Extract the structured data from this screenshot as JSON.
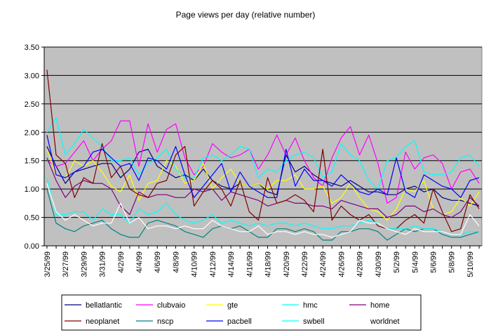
{
  "chart_data": {
    "type": "line",
    "title": "Page views per day (relative number)",
    "xlabel": "",
    "ylabel": "",
    "ylim": [
      0,
      3.5
    ],
    "yticks": [
      "0.00",
      "0.50",
      "1.00",
      "1.50",
      "2.00",
      "2.50",
      "3.00",
      "3.50"
    ],
    "ytick_values": [
      0,
      0.5,
      1,
      1.5,
      2,
      2.5,
      3,
      3.5
    ],
    "grid": true,
    "plot_background": "#c0c0c0",
    "legend_position": "bottom",
    "x_tick_labels": [
      "3/25/99",
      "3/27/99",
      "3/29/99",
      "3/31/99",
      "4/2/99",
      "4/4/99",
      "4/6/99",
      "4/8/99",
      "4/10/99",
      "4/12/99",
      "4/14/99",
      "4/16/99",
      "4/18/99",
      "4/20/99",
      "4/22/99",
      "4/24/99",
      "4/26/99",
      "4/28/99",
      "4/30/99",
      "5/2/99",
      "5/4/99",
      "5/6/99",
      "5/8/99",
      "5/10/99"
    ],
    "x": [
      "3/25/99",
      "3/26/99",
      "3/27/99",
      "3/28/99",
      "3/29/99",
      "3/30/99",
      "3/31/99",
      "4/1/99",
      "4/2/99",
      "4/3/99",
      "4/4/99",
      "4/5/99",
      "4/6/99",
      "4/7/99",
      "4/8/99",
      "4/9/99",
      "4/10/99",
      "4/11/99",
      "4/12/99",
      "4/13/99",
      "4/14/99",
      "4/15/99",
      "4/16/99",
      "4/17/99",
      "4/18/99",
      "4/19/99",
      "4/20/99",
      "4/21/99",
      "4/22/99",
      "4/23/99",
      "4/24/99",
      "4/25/99",
      "4/26/99",
      "4/27/99",
      "4/28/99",
      "4/29/99",
      "4/30/99",
      "5/1/99",
      "5/2/99",
      "5/3/99",
      "5/4/99",
      "5/5/99",
      "5/6/99",
      "5/7/99",
      "5/8/99",
      "5/9/99",
      "5/10/99",
      "5/11/99"
    ],
    "series": [
      {
        "name": "bellatlantic",
        "color": "#000080",
        "values": [
          1.75,
          1.4,
          1.1,
          1.3,
          1.35,
          1.4,
          1.45,
          1.45,
          1.2,
          1.35,
          1.65,
          1.7,
          1.4,
          1.3,
          1.2,
          1.25,
          1.15,
          1.35,
          1.15,
          1.05,
          1.0,
          1.1,
          1.05,
          1.1,
          0.95,
          0.9,
          1.6,
          1.3,
          1.4,
          1.25,
          1.15,
          1.1,
          1.05,
          1.15,
          1.05,
          0.95,
          0.95,
          0.9,
          0.9,
          1.0,
          1.05,
          0.95,
          1.0,
          0.85,
          0.8,
          0.8,
          0.75,
          0.7
        ]
      },
      {
        "name": "clubvaio",
        "color": "#ff00ff",
        "values": [
          1.5,
          1.4,
          1.45,
          1.65,
          1.85,
          1.5,
          1.7,
          1.85,
          2.2,
          2.2,
          1.4,
          2.15,
          1.65,
          2.05,
          2.15,
          1.55,
          1.25,
          1.4,
          1.8,
          1.65,
          1.55,
          1.6,
          1.7,
          1.35,
          1.6,
          1.95,
          1.6,
          1.9,
          1.5,
          1.2,
          1.05,
          1.55,
          1.9,
          2.1,
          1.6,
          1.95,
          1.45,
          0.75,
          0.85,
          1.65,
          1.35,
          1.55,
          1.6,
          1.45,
          1.0,
          1.3,
          1.35,
          1.1
        ]
      },
      {
        "name": "gte",
        "color": "#ffff00",
        "values": [
          1.7,
          1.25,
          1.2,
          1.5,
          1.4,
          1.5,
          1.3,
          1.05,
          0.95,
          1.25,
          0.8,
          1.1,
          1.15,
          1.5,
          1.4,
          1.1,
          1.15,
          1.45,
          1.0,
          1.2,
          1.35,
          1.1,
          1.05,
          1.1,
          1.0,
          1.15,
          1.15,
          1.25,
          1.0,
          1.0,
          1.05,
          0.75,
          0.85,
          1.1,
          0.85,
          0.65,
          0.6,
          0.45,
          0.65,
          1.0,
          0.95,
          1.15,
          0.65,
          0.55,
          0.6,
          0.85,
          0.7,
          0.95
        ]
      },
      {
        "name": "hmc",
        "color": "#00ffff",
        "values": [
          2.0,
          2.25,
          1.6,
          1.8,
          2.05,
          1.9,
          1.75,
          1.5,
          1.5,
          1.55,
          1.25,
          1.45,
          1.55,
          1.7,
          1.35,
          1.2,
          1.2,
          1.55,
          1.6,
          1.5,
          1.6,
          1.75,
          1.7,
          1.2,
          1.35,
          1.3,
          1.5,
          1.6,
          1.65,
          1.55,
          1.2,
          1.3,
          1.8,
          1.6,
          1.5,
          1.15,
          1.0,
          1.5,
          1.55,
          1.75,
          1.85,
          1.3,
          1.25,
          1.25,
          1.3,
          1.55,
          1.6,
          1.4
        ]
      },
      {
        "name": "home",
        "color": "#800080",
        "values": [
          1.55,
          1.15,
          0.85,
          1.05,
          1.15,
          1.1,
          1.1,
          1.0,
          0.7,
          0.55,
          0.95,
          0.85,
          0.9,
          0.9,
          0.85,
          0.85,
          1.0,
          0.95,
          1.0,
          0.8,
          0.95,
          0.9,
          0.85,
          0.8,
          0.7,
          0.75,
          0.8,
          0.75,
          0.75,
          0.7,
          0.7,
          0.65,
          0.8,
          0.75,
          0.7,
          0.65,
          0.65,
          0.5,
          0.55,
          0.7,
          0.7,
          0.6,
          0.65,
          0.55,
          0.5,
          0.6,
          0.85,
          0.7
        ]
      },
      {
        "name": "neoplanet",
        "color": "#800000",
        "values": [
          3.1,
          1.6,
          1.45,
          0.85,
          1.2,
          1.1,
          1.8,
          1.2,
          1.4,
          1.0,
          0.9,
          0.85,
          1.1,
          1.15,
          1.6,
          1.75,
          0.7,
          0.95,
          1.15,
          1.0,
          0.7,
          1.15,
          0.6,
          0.45,
          1.2,
          0.75,
          0.8,
          0.9,
          0.8,
          0.6,
          1.7,
          0.45,
          0.7,
          0.55,
          0.45,
          0.55,
          0.35,
          0.3,
          0.3,
          0.45,
          0.55,
          0.4,
          1.0,
          0.6,
          0.25,
          0.3,
          0.9,
          0.65
        ]
      },
      {
        "name": "nscp",
        "color": "#008080",
        "values": [
          1.0,
          0.4,
          0.3,
          0.25,
          0.35,
          0.4,
          0.45,
          0.3,
          0.2,
          0.15,
          0.15,
          0.4,
          0.45,
          0.4,
          0.35,
          0.25,
          0.2,
          0.15,
          0.3,
          0.35,
          0.3,
          0.35,
          0.25,
          0.15,
          0.15,
          0.3,
          0.3,
          0.25,
          0.3,
          0.25,
          0.1,
          0.1,
          0.25,
          0.25,
          0.3,
          0.3,
          0.25,
          0.1,
          0.2,
          0.3,
          0.25,
          0.3,
          0.3,
          0.2,
          0.15,
          0.15,
          0.2,
          0.25
        ]
      },
      {
        "name": "pacbell",
        "color": "#0000ff",
        "values": [
          1.95,
          1.25,
          1.2,
          1.3,
          1.4,
          1.65,
          1.7,
          1.55,
          1.4,
          1.45,
          1.15,
          1.55,
          1.5,
          1.35,
          1.75,
          1.25,
          0.85,
          1.05,
          1.25,
          1.45,
          0.95,
          1.3,
          1.05,
          0.95,
          0.85,
          0.85,
          1.7,
          1.05,
          1.35,
          1.15,
          1.15,
          1.05,
          1.25,
          1.1,
          0.95,
          0.9,
          1.0,
          0.9,
          1.55,
          0.95,
          0.85,
          1.25,
          1.15,
          1.05,
          1.0,
          0.85,
          1.15,
          1.2
        ]
      },
      {
        "name": "swbell",
        "color": "#00ffff",
        "values": [
          1.2,
          0.55,
          0.55,
          0.6,
          0.6,
          0.45,
          0.65,
          0.55,
          0.55,
          0.4,
          0.65,
          0.55,
          0.6,
          0.75,
          0.55,
          0.45,
          0.4,
          0.45,
          0.55,
          0.4,
          0.45,
          0.4,
          0.35,
          0.4,
          0.35,
          0.4,
          0.4,
          0.35,
          0.4,
          0.35,
          0.3,
          0.3,
          0.35,
          0.35,
          0.4,
          0.45,
          0.4,
          0.3,
          0.3,
          0.3,
          0.35,
          0.3,
          0.3,
          0.25,
          0.2,
          0.2,
          0.25,
          0.25
        ]
      },
      {
        "name": "worldnet",
        "color": "#ffffff",
        "values": [
          1.1,
          0.6,
          0.45,
          0.55,
          0.45,
          0.35,
          0.4,
          0.4,
          0.75,
          0.4,
          0.5,
          0.3,
          0.35,
          0.35,
          0.3,
          0.35,
          0.3,
          0.3,
          0.45,
          0.35,
          0.3,
          0.25,
          0.25,
          0.35,
          0.2,
          0.25,
          0.25,
          0.2,
          0.25,
          0.2,
          0.2,
          0.15,
          0.2,
          0.25,
          0.45,
          0.4,
          0.4,
          0.3,
          0.25,
          0.2,
          0.3,
          0.25,
          0.25,
          0.25,
          0.2,
          0.2,
          0.55,
          0.35
        ]
      }
    ]
  }
}
